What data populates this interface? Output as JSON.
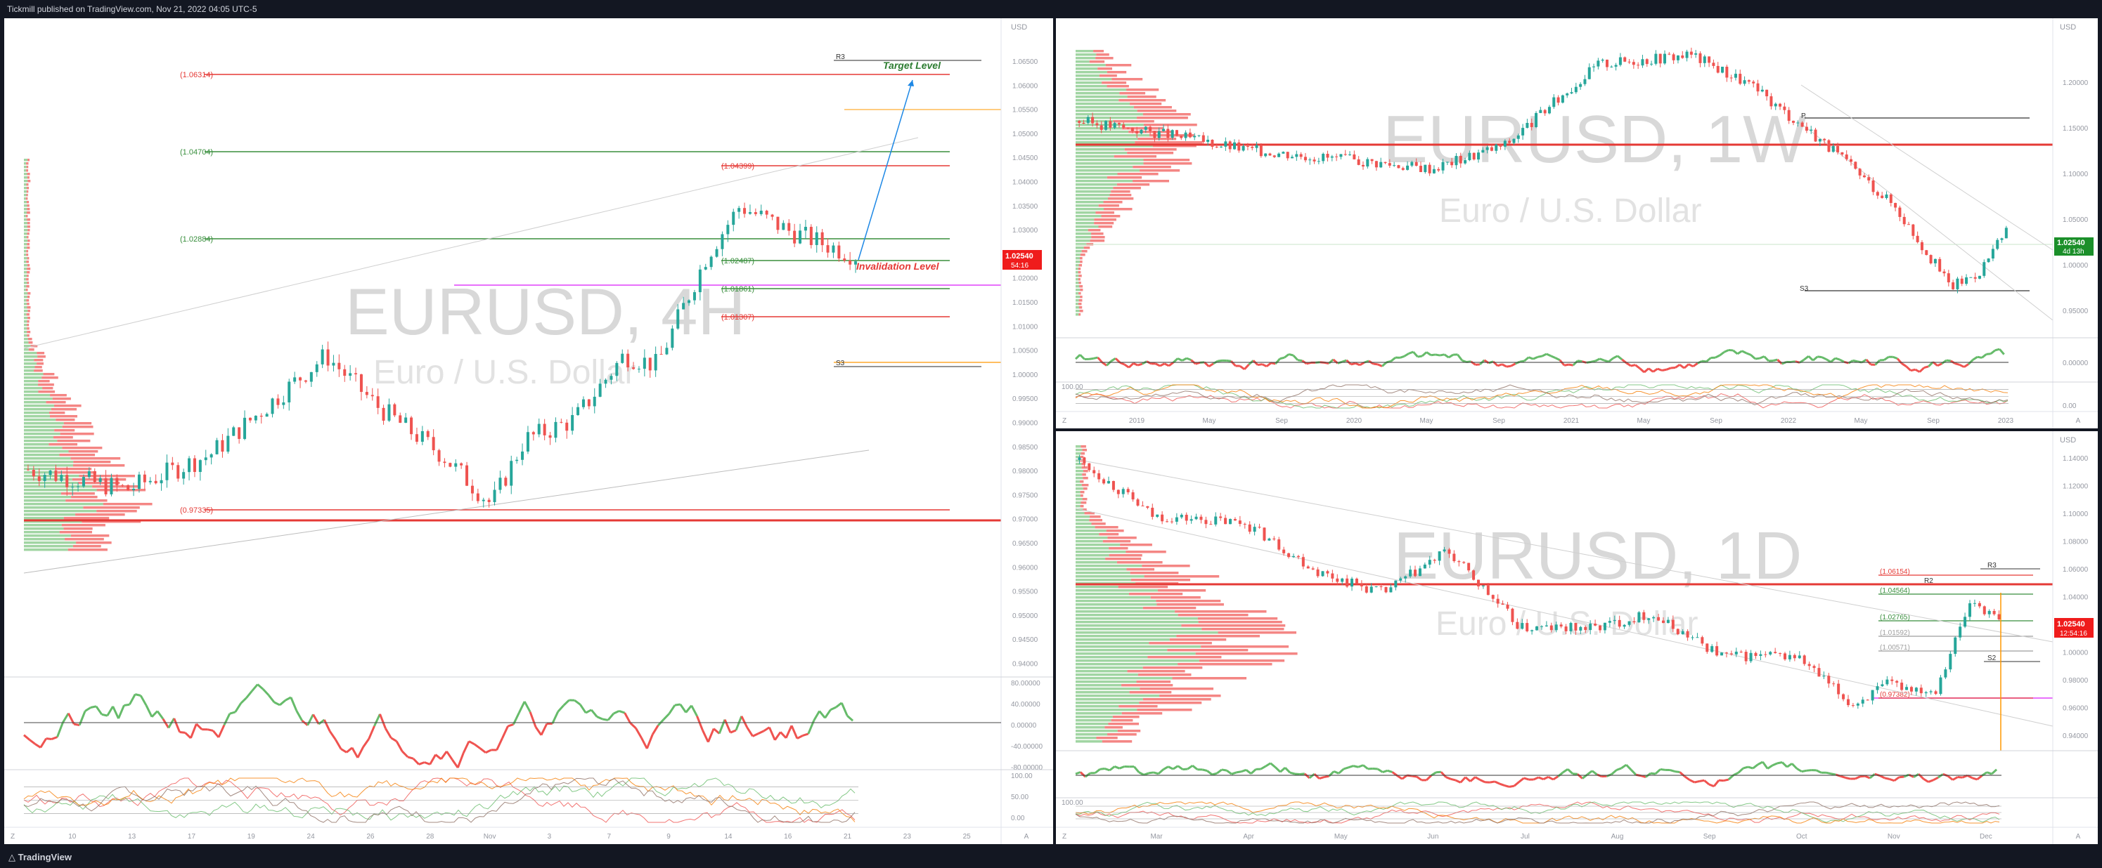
{
  "header": {
    "publisher": "Tickmill published on TradingView.com, Nov 21, 2022 04:05 UTC-5"
  },
  "footer": {
    "brand": "TradingView"
  },
  "colors": {
    "up": "#26a69a",
    "down": "#ef5350",
    "green_line": "#388e3c",
    "red_line": "#e53935",
    "watermark": "#d8d8d8",
    "axis_text": "#9598a1"
  },
  "charts": {
    "h4": {
      "symbol_watermark": "EURUSD, 4H",
      "desc_watermark": "Euro / U.S. Dollar",
      "currency": "USD",
      "price_badge": "1.02540",
      "countdown": "54:16",
      "price_labels": [
        "1.06500",
        "1.06000",
        "1.05500",
        "1.05000",
        "1.04500",
        "1.04000",
        "1.03500",
        "1.03000",
        "1.02500",
        "1.02000",
        "1.01500",
        "1.01000",
        "1.00500",
        "1.00000",
        "0.99500",
        "0.99000",
        "0.98500",
        "0.98000",
        "0.97500",
        "0.97000",
        "0.96500",
        "0.96000",
        "0.95500",
        "0.95000",
        "0.94500",
        "0.94000"
      ],
      "osc_labels": [
        "80.00000",
        "40.00000",
        "0.00000",
        "-40.00000",
        "-80.00000"
      ],
      "stoch_labels": [
        "100.00",
        "50.00",
        "0.00"
      ],
      "time_labels": [
        "Z",
        "10",
        "13",
        "17",
        "19",
        "24",
        "26",
        "28",
        "Nov",
        "3",
        "7",
        "9",
        "14",
        "16",
        "21",
        "23",
        "25",
        "A"
      ],
      "fib_levels": [
        "(1.06314)",
        "(1.04704)",
        "(1.04399)",
        "(1.02884)",
        "(1.02487)",
        "(1.01861)",
        "(1.01307)",
        "(0.97335)"
      ],
      "pivot_labels": [
        "R3",
        "S3"
      ],
      "annotations": {
        "target": "Target Level",
        "invalidation": "Invalidation Level"
      }
    },
    "w1": {
      "symbol_watermark": "EURUSD, 1W",
      "desc_watermark": "Euro / U.S. Dollar",
      "currency": "USD",
      "price_badge": "1.02540",
      "countdown": "4d 13h",
      "price_labels": [
        "1.20000",
        "1.15000",
        "1.10000",
        "1.05000",
        "1.00000",
        "0.95000"
      ],
      "osc_labels": [
        "0.00000"
      ],
      "stoch_labels": [
        "100.00",
        "0.00"
      ],
      "time_labels": [
        "Z",
        "2019",
        "May",
        "Sep",
        "2020",
        "May",
        "Sep",
        "2021",
        "May",
        "Sep",
        "2022",
        "May",
        "Sep",
        "2023",
        "A"
      ],
      "pivot_labels": [
        "P",
        "S3"
      ]
    },
    "d1": {
      "symbol_watermark": "EURUSD, 1D",
      "desc_watermark": "Euro / U.S. Dollar",
      "currency": "USD",
      "price_badge": "1.02540",
      "countdown": "12:54:16",
      "price_labels": [
        "1.14000",
        "1.12000",
        "1.10000",
        "1.08000",
        "1.06000",
        "1.04000",
        "1.02000",
        "1.00000",
        "0.98000",
        "0.96000",
        "0.94000"
      ],
      "stoch_labels": [
        "100.00"
      ],
      "time_labels": [
        "Z",
        "Mar",
        "Apr",
        "May",
        "Jun",
        "Jul",
        "Aug",
        "Sep",
        "Oct",
        "Nov",
        "Dec",
        "A"
      ],
      "fib_levels": [
        "(1.06154)",
        "(1.04564)",
        "(1.02765)",
        "(1.01592)",
        "(1.00571)",
        "(0.97382)"
      ],
      "pivot_labels": [
        "R3",
        "R2",
        "S2"
      ]
    }
  }
}
